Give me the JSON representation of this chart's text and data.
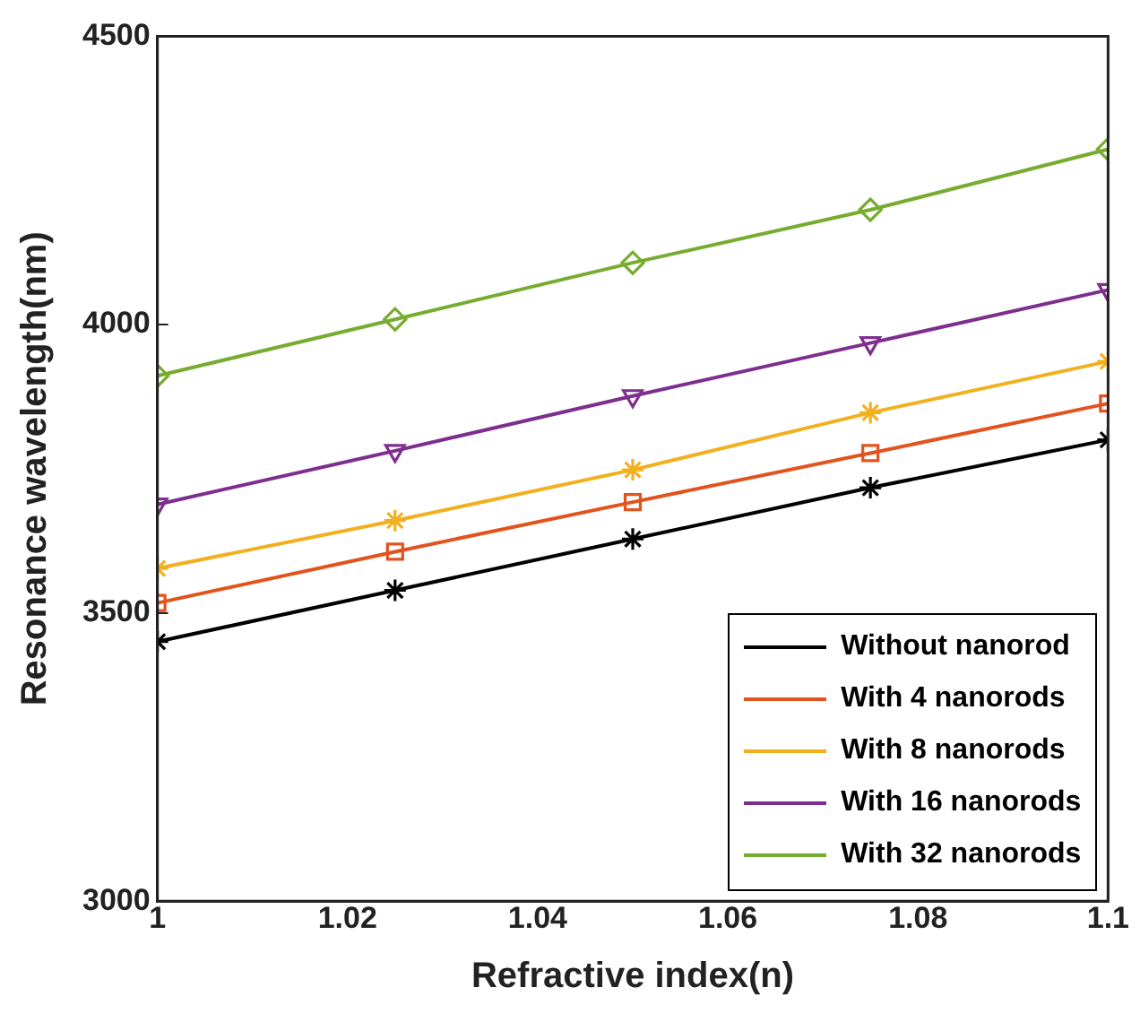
{
  "chart_data": {
    "type": "line",
    "xlabel": "Refractive index(n)",
    "ylabel": "Resonance wavelength(nm)",
    "x": [
      1,
      1.025,
      1.05,
      1.075,
      1.1
    ],
    "series": [
      {
        "name": "Without nanorod",
        "color": "#000000",
        "marker": "cross",
        "values": [
          3450,
          3539,
          3628,
          3717,
          3800
        ]
      },
      {
        "name": "With 4 nanorods",
        "color": "#e2531d",
        "marker": "square",
        "values": [
          3517,
          3606,
          3692,
          3777,
          3863
        ]
      },
      {
        "name": "With 8 nanorods",
        "color": "#f2b01e",
        "marker": "cross",
        "values": [
          3577,
          3660,
          3748,
          3847,
          3936
        ]
      },
      {
        "name": "With 16 nanorods",
        "color": "#7e2f8e",
        "marker": "triangle",
        "values": [
          3688,
          3781,
          3876,
          3968,
          4060
        ]
      },
      {
        "name": "With 32 nanorods",
        "color": "#77ac30",
        "marker": "diamond",
        "values": [
          3911,
          4009,
          4107,
          4199,
          4304
        ]
      }
    ],
    "xlim": [
      1,
      1.1
    ],
    "xticks": [
      1,
      1.02,
      1.04,
      1.06,
      1.08,
      1.1
    ],
    "ylim": [
      3000,
      4500
    ],
    "yticks": [
      3000,
      3500,
      4000,
      4500
    ],
    "grid": false,
    "legend": "bottom right"
  }
}
